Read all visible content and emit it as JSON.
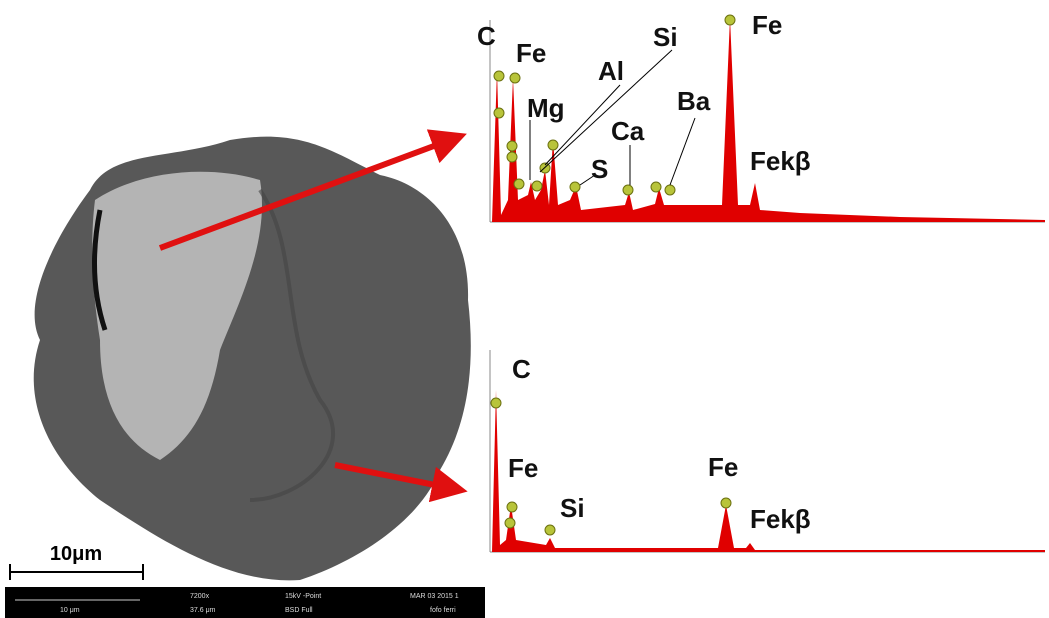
{
  "spectrum_top": {
    "labels": [
      "C",
      "Fe",
      "Mg",
      "Al",
      "Si",
      "S",
      "Ca",
      "Ba",
      "Fe",
      "Fekβ"
    ]
  },
  "spectrum_bottom": {
    "labels": [
      "C",
      "Fe",
      "Si",
      "Fe",
      "Fekβ"
    ]
  },
  "scale_bar": "10μm",
  "info_bar": {
    "scale": "10 μm",
    "magnification": "7200x",
    "field": "37.6 μm",
    "voltage": "15kV -Point",
    "detector": "BSD Full",
    "date": "MAR 03 2015 1",
    "sample": "fofo ferri"
  }
}
